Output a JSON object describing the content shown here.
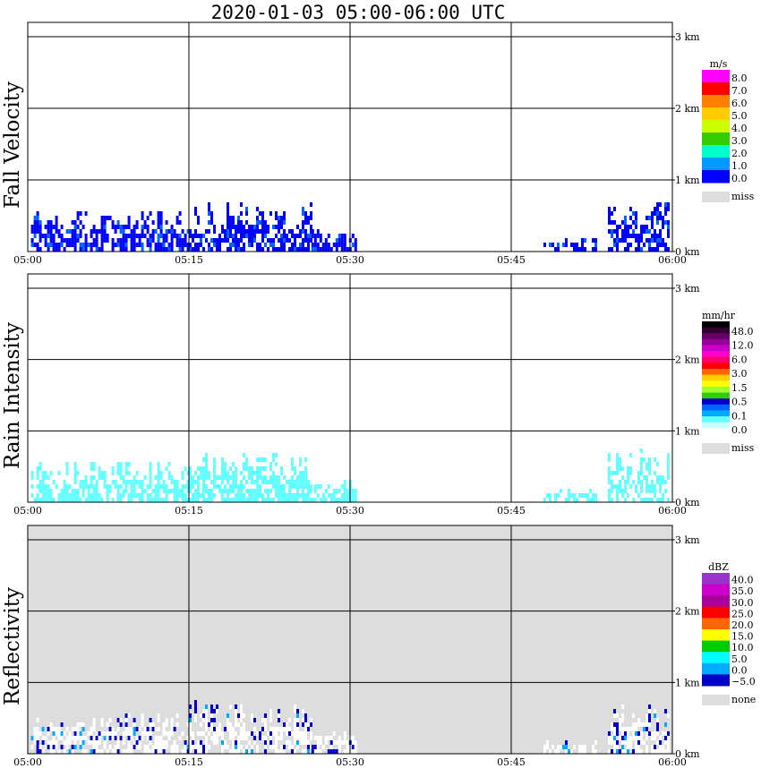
{
  "title": "2020-01-03   05:00-06:00 UTC",
  "colors": {
    "panel_bg": "#ffffff",
    "reflectivity_bg": "#dddddd",
    "grid": "#000000",
    "miss": "#dddddd"
  },
  "chart_data": [
    {
      "type": "heatmap",
      "ylabel": "Fall Velocity",
      "x_ticks": [
        "05:00",
        "05:15",
        "05:30",
        "05:45",
        "06:00"
      ],
      "y_ticks": [
        "0 km",
        "1 km",
        "2 km",
        "3 km"
      ],
      "ylim": [
        0,
        3.0
      ],
      "xlim": [
        "05:00",
        "06:00"
      ],
      "grid": true,
      "legend": {
        "unit": "m/s",
        "placement": "right",
        "labels": [
          "8.0",
          "7.0",
          "6.0",
          "5.0",
          "4.0",
          "3.0",
          "2.0",
          "1.0",
          "0.0"
        ],
        "colors": [
          "#ff00ff",
          "#ff0000",
          "#ff7f00",
          "#ffcc00",
          "#ccff00",
          "#33cc00",
          "#00ffcc",
          "#0099ff",
          "#0000ff"
        ],
        "miss_label": "miss"
      }
    },
    {
      "type": "heatmap",
      "ylabel": "Rain Intensity",
      "x_ticks": [
        "05:00",
        "05:15",
        "05:30",
        "05:45",
        "06:00"
      ],
      "y_ticks": [
        "0 km",
        "1 km",
        "2 km",
        "3 km"
      ],
      "ylim": [
        0,
        3.0
      ],
      "xlim": [
        "05:00",
        "06:00"
      ],
      "grid": true,
      "legend": {
        "unit": "mm/hr",
        "placement": "right",
        "labels": [
          "48.0",
          "12.0",
          "6.0",
          "3.0",
          "1.5",
          "0.5",
          "0.1",
          "0.0"
        ],
        "colors": [
          "#000000",
          "#330033",
          "#660066",
          "#990099",
          "#cc00cc",
          "#ff00cc",
          "#ff0066",
          "#ff0000",
          "#ff6600",
          "#ffcc00",
          "#ffff00",
          "#99ff33",
          "#33cc00",
          "#0000cc",
          "#0066ff",
          "#00aaff",
          "#66ffff",
          "#ccffff",
          "#ffffff"
        ],
        "miss_label": "miss"
      }
    },
    {
      "type": "heatmap",
      "ylabel": "Reflectivity",
      "x_ticks": [
        "05:00",
        "05:15",
        "05:30",
        "05:45",
        "06:00"
      ],
      "y_ticks": [
        "0 km",
        "1 km",
        "2 km",
        "3 km"
      ],
      "ylim": [
        0,
        3.0
      ],
      "xlim": [
        "05:00",
        "06:00"
      ],
      "grid": true,
      "legend": {
        "unit": "dBZ",
        "placement": "right",
        "labels": [
          "40.0",
          "35.0",
          "30.0",
          "25.0",
          "20.0",
          "15.0",
          "10.0",
          "5.0",
          "0.0",
          "−5.0"
        ],
        "colors": [
          "#9933cc",
          "#cc00cc",
          "#aa0099",
          "#ff0000",
          "#ff6600",
          "#ffff00",
          "#00cc00",
          "#00ffff",
          "#00aaff",
          "#0000cc"
        ],
        "miss_label": "none"
      }
    }
  ]
}
